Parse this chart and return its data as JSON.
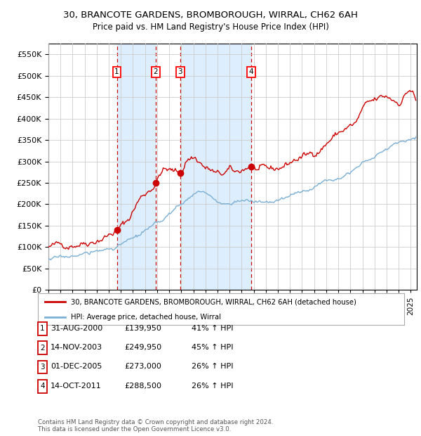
{
  "title": "30, BRANCOTE GARDENS, BROMBOROUGH, WIRRAL, CH62 6AH",
  "subtitle": "Price paid vs. HM Land Registry's House Price Index (HPI)",
  "ylim": [
    0,
    575000
  ],
  "yticks": [
    0,
    50000,
    100000,
    150000,
    200000,
    250000,
    300000,
    350000,
    400000,
    450000,
    500000,
    550000
  ],
  "xlim_start": 1995.0,
  "xlim_end": 2025.5,
  "sale_dates": [
    2000.667,
    2003.875,
    2005.917,
    2011.792
  ],
  "sale_prices": [
    139950,
    249950,
    273000,
    288500
  ],
  "sale_labels": [
    "1",
    "2",
    "3",
    "4"
  ],
  "shade_ranges": [
    [
      2000.667,
      2003.875
    ],
    [
      2005.917,
      2011.792
    ]
  ],
  "red_line_color": "#cc0000",
  "blue_line_color": "#7bafd4",
  "shade_color": "#ddeeff",
  "dashed_color": "#cc0000",
  "marker_color": "#cc0000",
  "legend_entries": [
    "30, BRANCOTE GARDENS, BROMBOROUGH, WIRRAL, CH62 6AH (detached house)",
    "HPI: Average price, detached house, Wirral"
  ],
  "table_rows": [
    [
      "1",
      "31-AUG-2000",
      "£139,950",
      "41% ↑ HPI"
    ],
    [
      "2",
      "14-NOV-2003",
      "£249,950",
      "45% ↑ HPI"
    ],
    [
      "3",
      "01-DEC-2005",
      "£273,000",
      "26% ↑ HPI"
    ],
    [
      "4",
      "14-OCT-2011",
      "£288,500",
      "26% ↑ HPI"
    ]
  ],
  "footer": "Contains HM Land Registry data © Crown copyright and database right 2024.\nThis data is licensed under the Open Government Licence v3.0.",
  "background_color": "#ffffff",
  "grid_color": "#cccccc",
  "red_anchors_x": [
    1995.0,
    1996.0,
    1997.0,
    1998.0,
    1999.0,
    2000.0,
    2000.667,
    2001.5,
    2002.5,
    2003.875,
    2004.5,
    2005.917,
    2006.5,
    2007.0,
    2007.5,
    2008.0,
    2008.5,
    2009.0,
    2009.5,
    2010.0,
    2010.5,
    2011.0,
    2011.792,
    2012.5,
    2013.5,
    2014.5,
    2015.5,
    2016.5,
    2017.5,
    2018.5,
    2019.5,
    2020.5,
    2021.0,
    2022.0,
    2023.0,
    2024.0,
    2024.5
  ],
  "red_anchors_y": [
    100000,
    105000,
    108000,
    112000,
    118000,
    128000,
    139950,
    160000,
    210000,
    249950,
    280000,
    273000,
    305000,
    310000,
    300000,
    285000,
    278000,
    268000,
    270000,
    278000,
    272000,
    280000,
    288500,
    278000,
    280000,
    290000,
    305000,
    315000,
    330000,
    355000,
    375000,
    390000,
    420000,
    440000,
    450000,
    440000,
    455000
  ],
  "blue_anchors_x": [
    1995.0,
    1996.0,
    1997.5,
    1999.0,
    2000.5,
    2002.0,
    2004.0,
    2006.0,
    2007.5,
    2008.5,
    2009.5,
    2011.0,
    2012.0,
    2013.5,
    2015.0,
    2016.5,
    2018.0,
    2019.5,
    2021.0,
    2022.5,
    2024.0,
    2024.5
  ],
  "blue_anchors_y": [
    72000,
    76000,
    82000,
    90000,
    100000,
    120000,
    155000,
    200000,
    230000,
    215000,
    200000,
    210000,
    205000,
    205000,
    220000,
    235000,
    255000,
    270000,
    295000,
    320000,
    345000,
    350000
  ]
}
